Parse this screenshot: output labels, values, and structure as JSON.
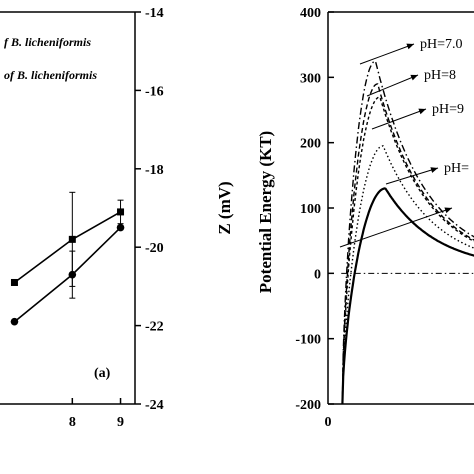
{
  "chart_data": [
    {
      "type": "line",
      "panel_label": "(a)",
      "legend": [
        "f B. licheniformis",
        "of B. licheniformis"
      ],
      "xlim": [
        6.5,
        9.3
      ],
      "x_ticks": [
        "8",
        "9"
      ],
      "y_right_label": "Z (mV)",
      "ylim": [
        -24,
        -14
      ],
      "y_ticks": [
        "-14",
        "-16",
        "-18",
        "-20",
        "-22",
        "-24"
      ],
      "series": [
        {
          "marker": "square",
          "x": [
            6.8,
            8,
            9
          ],
          "y": [
            -20.9,
            -19.8,
            -19.1
          ],
          "yerr": [
            0,
            1.2,
            0.3
          ]
        },
        {
          "marker": "circle",
          "x": [
            6.8,
            8,
            9
          ],
          "y": [
            -21.9,
            -20.7,
            -19.5
          ],
          "yerr": [
            0,
            0.6,
            0
          ]
        }
      ]
    },
    {
      "type": "line",
      "ylabel": "Potential Energy (KT)",
      "ylim": [
        -200,
        400
      ],
      "y_ticks": [
        "400",
        "300",
        "200",
        "100",
        "0",
        "-100",
        "-200"
      ],
      "xlim": [
        0,
        25
      ],
      "x_ticks": [
        "0"
      ],
      "baseline": 0,
      "series": [
        {
          "name": "pH=7.0",
          "style": "dash-dot",
          "peak_x": 4.3,
          "peak": 325,
          "end_y": 12
        },
        {
          "name": "pH=8",
          "style": "dash",
          "peak_x": 4.5,
          "peak": 290,
          "end_y": 10
        },
        {
          "name": "pH=9",
          "style": "short-dash",
          "peak_x": 4.7,
          "peak": 270,
          "end_y": 9
        },
        {
          "name": "pH=",
          "style": "dot",
          "peak_x": 5.0,
          "peak": 195,
          "end_y": 8
        },
        {
          "name": "",
          "style": "solid",
          "peak_x": 5.2,
          "peak": 130,
          "end_y": 6
        }
      ]
    }
  ]
}
